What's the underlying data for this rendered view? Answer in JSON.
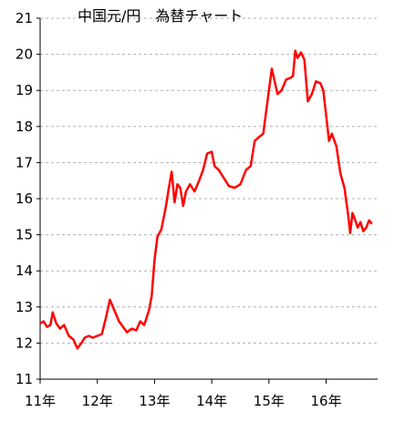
{
  "chart_data": {
    "type": "line",
    "title": "中国元/円　為替チャート",
    "xlabel": "",
    "ylabel": "",
    "x_tick_labels": [
      "11年",
      "12年",
      "13年",
      "14年",
      "15年",
      "16年"
    ],
    "y_ticks": [
      11,
      12,
      13,
      14,
      15,
      16,
      17,
      18,
      19,
      20,
      21
    ],
    "ylim": [
      11,
      21
    ],
    "xlim": [
      2011.0,
      2016.9
    ],
    "grid": "horizontal-dashed",
    "series": [
      {
        "color": "#ff0000",
        "x": [
          2011.0,
          2011.06,
          2011.12,
          2011.18,
          2011.22,
          2011.28,
          2011.35,
          2011.42,
          2011.5,
          2011.58,
          2011.65,
          2011.72,
          2011.78,
          2011.85,
          2011.92,
          2012.0,
          2012.08,
          2012.15,
          2012.22,
          2012.3,
          2012.38,
          2012.45,
          2012.52,
          2012.6,
          2012.68,
          2012.75,
          2012.82,
          2012.9,
          2012.95,
          2013.0,
          2013.05,
          2013.12,
          2013.2,
          2013.25,
          2013.3,
          2013.35,
          2013.4,
          2013.45,
          2013.5,
          2013.55,
          2013.62,
          2013.7,
          2013.78,
          2013.85,
          2013.92,
          2014.0,
          2014.05,
          2014.12,
          2014.2,
          2014.3,
          2014.4,
          2014.5,
          2014.6,
          2014.68,
          2014.75,
          2014.82,
          2014.9,
          2014.95,
          2015.0,
          2015.05,
          2015.1,
          2015.15,
          2015.22,
          2015.3,
          2015.38,
          2015.42,
          2015.46,
          2015.5,
          2015.56,
          2015.62,
          2015.68,
          2015.75,
          2015.82,
          2015.9,
          2015.95,
          2016.0,
          2016.05,
          2016.1,
          2016.18,
          2016.25,
          2016.32,
          2016.38,
          2016.42,
          2016.46,
          2016.5,
          2016.55,
          2016.6,
          2016.65,
          2016.7,
          2016.75,
          2016.8
        ],
        "y": [
          12.55,
          12.6,
          12.45,
          12.5,
          12.85,
          12.55,
          12.4,
          12.5,
          12.2,
          12.1,
          11.85,
          12.0,
          12.15,
          12.2,
          12.15,
          12.2,
          12.25,
          12.7,
          13.2,
          12.9,
          12.6,
          12.45,
          12.3,
          12.4,
          12.35,
          12.6,
          12.5,
          12.9,
          13.3,
          14.3,
          14.95,
          15.15,
          15.8,
          16.3,
          16.75,
          15.9,
          16.4,
          16.3,
          15.8,
          16.2,
          16.4,
          16.2,
          16.5,
          16.8,
          17.25,
          17.3,
          16.9,
          16.8,
          16.6,
          16.35,
          16.3,
          16.4,
          16.8,
          16.9,
          17.6,
          17.7,
          17.8,
          18.4,
          19.0,
          19.6,
          19.25,
          18.9,
          19.0,
          19.3,
          19.35,
          19.4,
          20.1,
          19.9,
          20.05,
          19.85,
          18.7,
          18.9,
          19.25,
          19.2,
          19.0,
          18.3,
          17.6,
          17.8,
          17.45,
          16.7,
          16.3,
          15.6,
          15.05,
          15.6,
          15.45,
          15.2,
          15.35,
          15.1,
          15.2,
          15.4,
          15.3
        ]
      }
    ]
  }
}
